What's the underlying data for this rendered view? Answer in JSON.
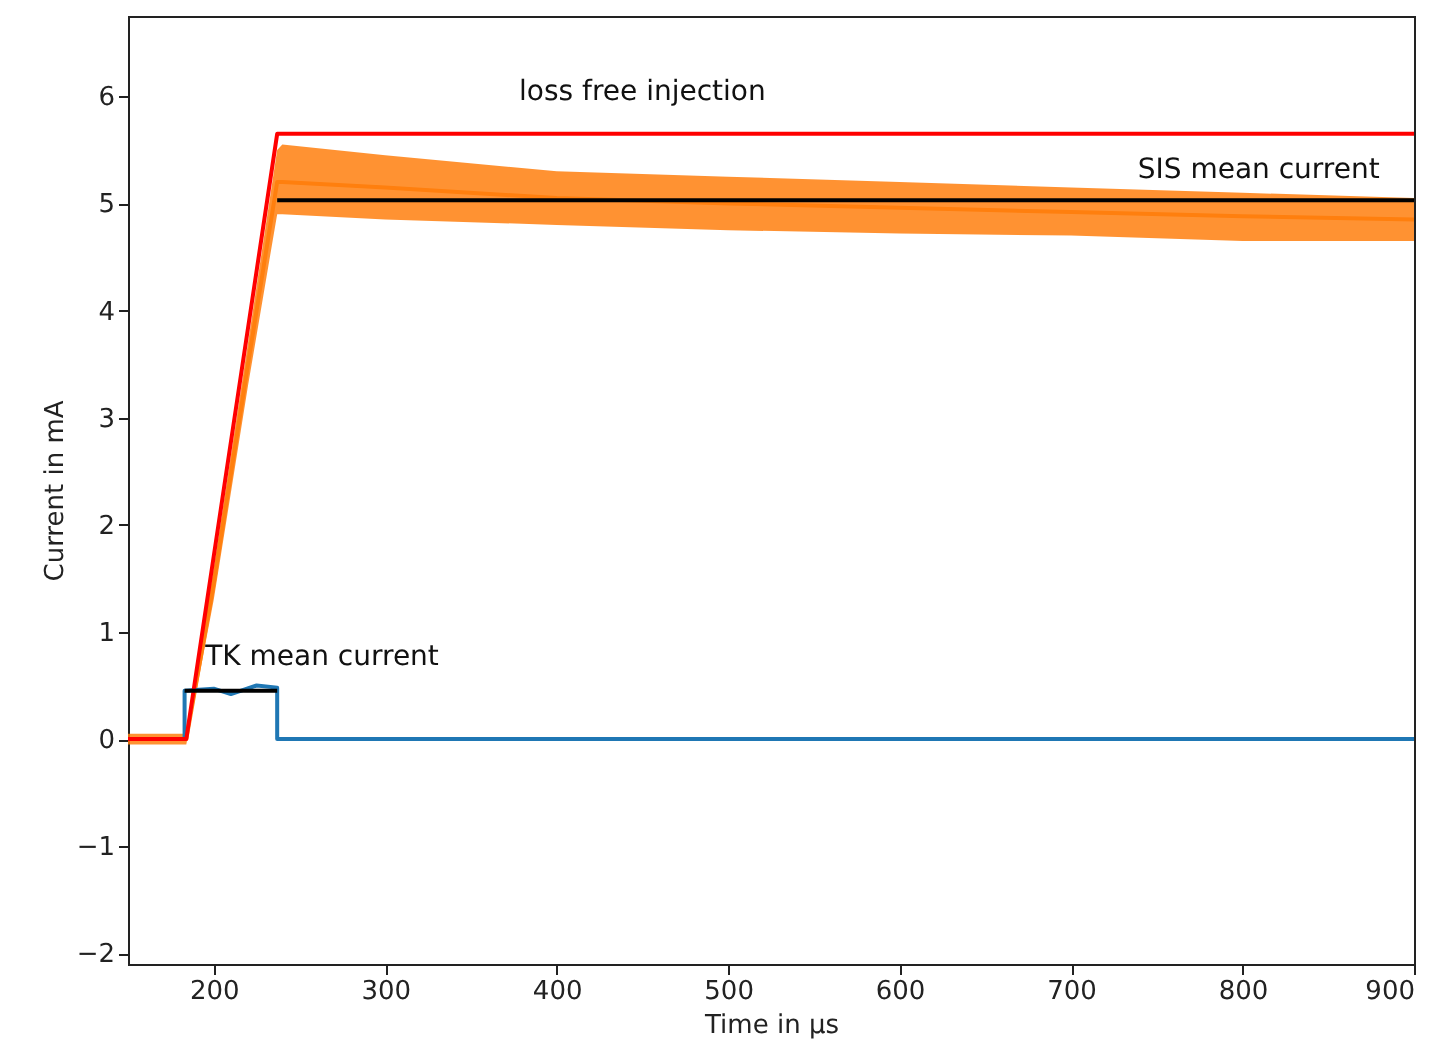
{
  "chart_data": {
    "type": "line",
    "xlabel": "Time in µs",
    "ylabel": "Current in mA",
    "xlim": [
      150,
      900
    ],
    "ylim": [
      -2.1,
      6.75
    ],
    "xticks": [
      200,
      300,
      400,
      500,
      600,
      700,
      800,
      900
    ],
    "yticks": [
      -2,
      -1,
      0,
      1,
      2,
      3,
      4,
      5,
      6
    ],
    "grid": false,
    "series": [
      {
        "color": "#ff7f0e",
        "x": [
          150,
          184,
          200,
          220,
          237,
          240,
          300,
          400,
          500,
          600,
          700,
          800,
          900
        ],
        "values": [
          0,
          0,
          1.45,
          3.5,
          5.2,
          5.2,
          5.15,
          5.05,
          5.0,
          4.96,
          4.92,
          4.88,
          4.85
        ],
        "lower": [
          -0.05,
          -0.05,
          1.3,
          3.3,
          4.9,
          4.9,
          4.85,
          4.8,
          4.75,
          4.72,
          4.7,
          4.65,
          4.65
        ],
        "upper": [
          0.05,
          0.05,
          1.6,
          3.7,
          5.5,
          5.55,
          5.45,
          5.3,
          5.25,
          5.2,
          5.15,
          5.1,
          5.05
        ]
      },
      {
        "color": "#1f77b4",
        "x": [
          183,
          183,
          200,
          210,
          225,
          237,
          237,
          900
        ],
        "values": [
          0,
          0.45,
          0.47,
          0.42,
          0.5,
          0.48,
          0,
          0
        ]
      },
      {
        "name": "loss free injection",
        "color": "#ff0000",
        "x": [
          150,
          184,
          237,
          900
        ],
        "values": [
          0,
          0,
          5.65,
          5.65
        ]
      },
      {
        "name": "SIS mean current",
        "color": "#000000",
        "x": [
          237,
          900
        ],
        "values": [
          5.03,
          5.03
        ]
      },
      {
        "name": "TK  mean current",
        "color": "#000000",
        "x": [
          183,
          237
        ],
        "values": [
          0.45,
          0.45
        ]
      }
    ]
  }
}
